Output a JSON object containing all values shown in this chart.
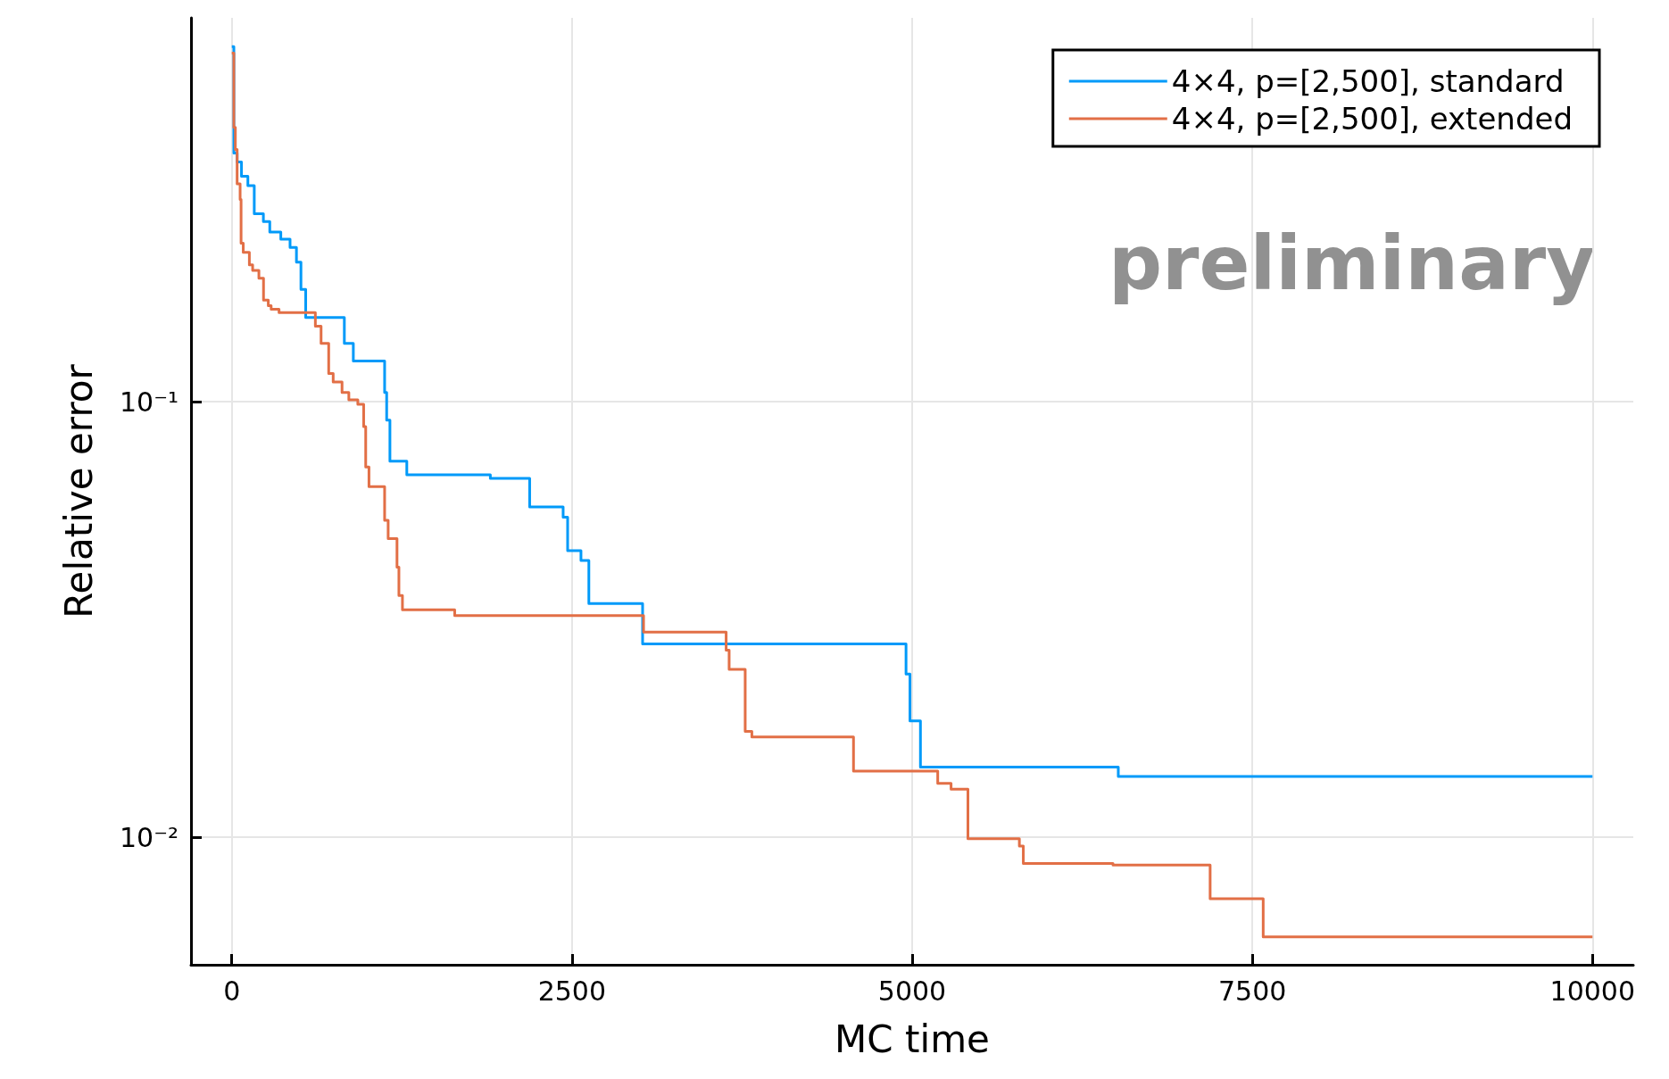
{
  "chart_data": {
    "type": "step",
    "xlabel": "MC time",
    "ylabel": "Relative error",
    "log": "y",
    "grid": true,
    "legend": "top right",
    "line_style": "solid",
    "marker": "none",
    "xlim": [
      -300,
      10300
    ],
    "xticks": [
      0,
      2500,
      5000,
      7500,
      10000
    ],
    "ylim": [
      0.0051,
      0.76
    ],
    "yticks": [
      {
        "value": 0.01,
        "label": "10⁻²"
      },
      {
        "value": 0.1,
        "label": "10⁻¹"
      }
    ],
    "annotations": [
      "preliminary"
    ],
    "series": [
      {
        "name": "4×4, p=[2,500], standard",
        "color": "#009af9",
        "x": [
          0,
          15,
          39,
          71,
          118,
          165,
          232,
          279,
          360,
          428,
          475,
          508,
          543,
          827,
          893,
          1123,
          1138,
          1162,
          1286,
          1900,
          2189,
          2435,
          2468,
          2566,
          2624,
          3019,
          4955,
          4984,
          5061,
          6515,
          10000
        ],
        "values": [
          0.653,
          0.372,
          0.355,
          0.329,
          0.313,
          0.27,
          0.259,
          0.245,
          0.236,
          0.226,
          0.209,
          0.181,
          0.156,
          0.136,
          0.124,
          0.105,
          0.0907,
          0.073,
          0.0679,
          0.0667,
          0.0573,
          0.0543,
          0.0455,
          0.0432,
          0.0344,
          0.0278,
          0.0237,
          0.0185,
          0.0145,
          0.0138,
          0.0138
        ]
      },
      {
        "name": "4×4, p=[2,500], extended",
        "color": "#e26f46",
        "x": [
          0,
          15,
          26,
          39,
          61,
          68,
          84,
          129,
          153,
          199,
          233,
          268,
          289,
          347,
          614,
          656,
          712,
          745,
          810,
          860,
          926,
          969,
          984,
          1008,
          1123,
          1149,
          1214,
          1228,
          1254,
          1638,
          3026,
          3633,
          3655,
          3773,
          3822,
          4569,
          5188,
          5286,
          5410,
          5788,
          5817,
          6476,
          7190,
          7580,
          10000
        ],
        "values": [
          0.631,
          0.426,
          0.379,
          0.316,
          0.291,
          0.231,
          0.22,
          0.206,
          0.2,
          0.192,
          0.171,
          0.166,
          0.163,
          0.16,
          0.149,
          0.136,
          0.116,
          0.111,
          0.105,
          0.101,
          0.0986,
          0.0876,
          0.0708,
          0.0638,
          0.0534,
          0.0485,
          0.0417,
          0.0359,
          0.0333,
          0.0323,
          0.0296,
          0.0269,
          0.0243,
          0.0175,
          0.017,
          0.0142,
          0.0133,
          0.0129,
          0.00993,
          0.00955,
          0.00871,
          0.00864,
          0.00723,
          0.00591,
          0.00591
        ]
      }
    ]
  }
}
